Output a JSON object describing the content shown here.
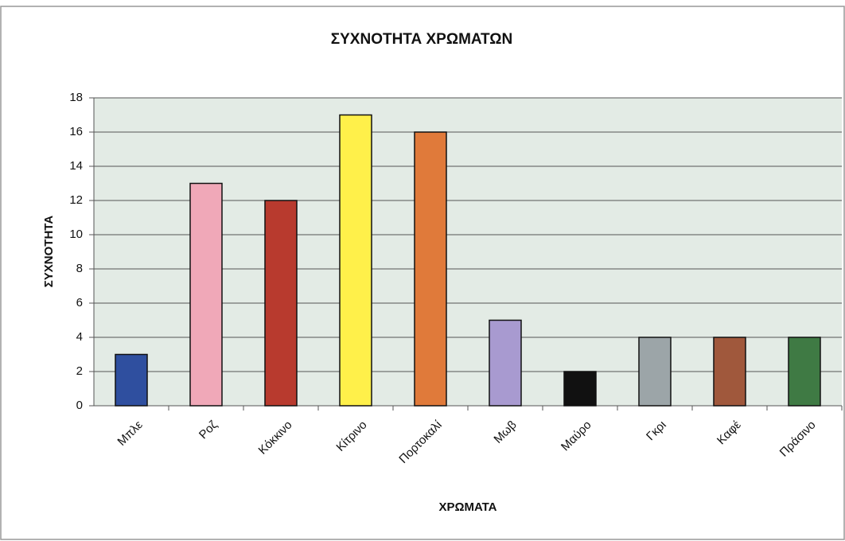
{
  "chart_data": {
    "type": "bar",
    "title": "ΣΥΧΝΟΤΗΤΑ ΧΡΩΜΑΤΩΝ",
    "x_label": "ΧΡΩΜΑΤΑ",
    "y_label": "ΣΥΧΝΟΤΗΤΑ",
    "categories": [
      "Μπλε",
      "Ροζ",
      "Κόκκινο",
      "Κίτρινο",
      "Πορτοκαλί",
      "Μωβ",
      "Μαύρο",
      "Γκρι",
      "Καφέ",
      "Πράσινο"
    ],
    "values": [
      3,
      13,
      12,
      17,
      16,
      5,
      2,
      4,
      4,
      4
    ],
    "colors": [
      "#2f4f9f",
      "#f0a8b8",
      "#b83a2e",
      "#fff04a",
      "#e07a3a",
      "#a89ad0",
      "#111111",
      "#9ca5a8",
      "#a0583c",
      "#3f7a44"
    ],
    "ylim": [
      0,
      18
    ],
    "yticks": [
      0,
      2,
      4,
      6,
      8,
      10,
      12,
      14,
      16,
      18
    ],
    "grid": true
  }
}
